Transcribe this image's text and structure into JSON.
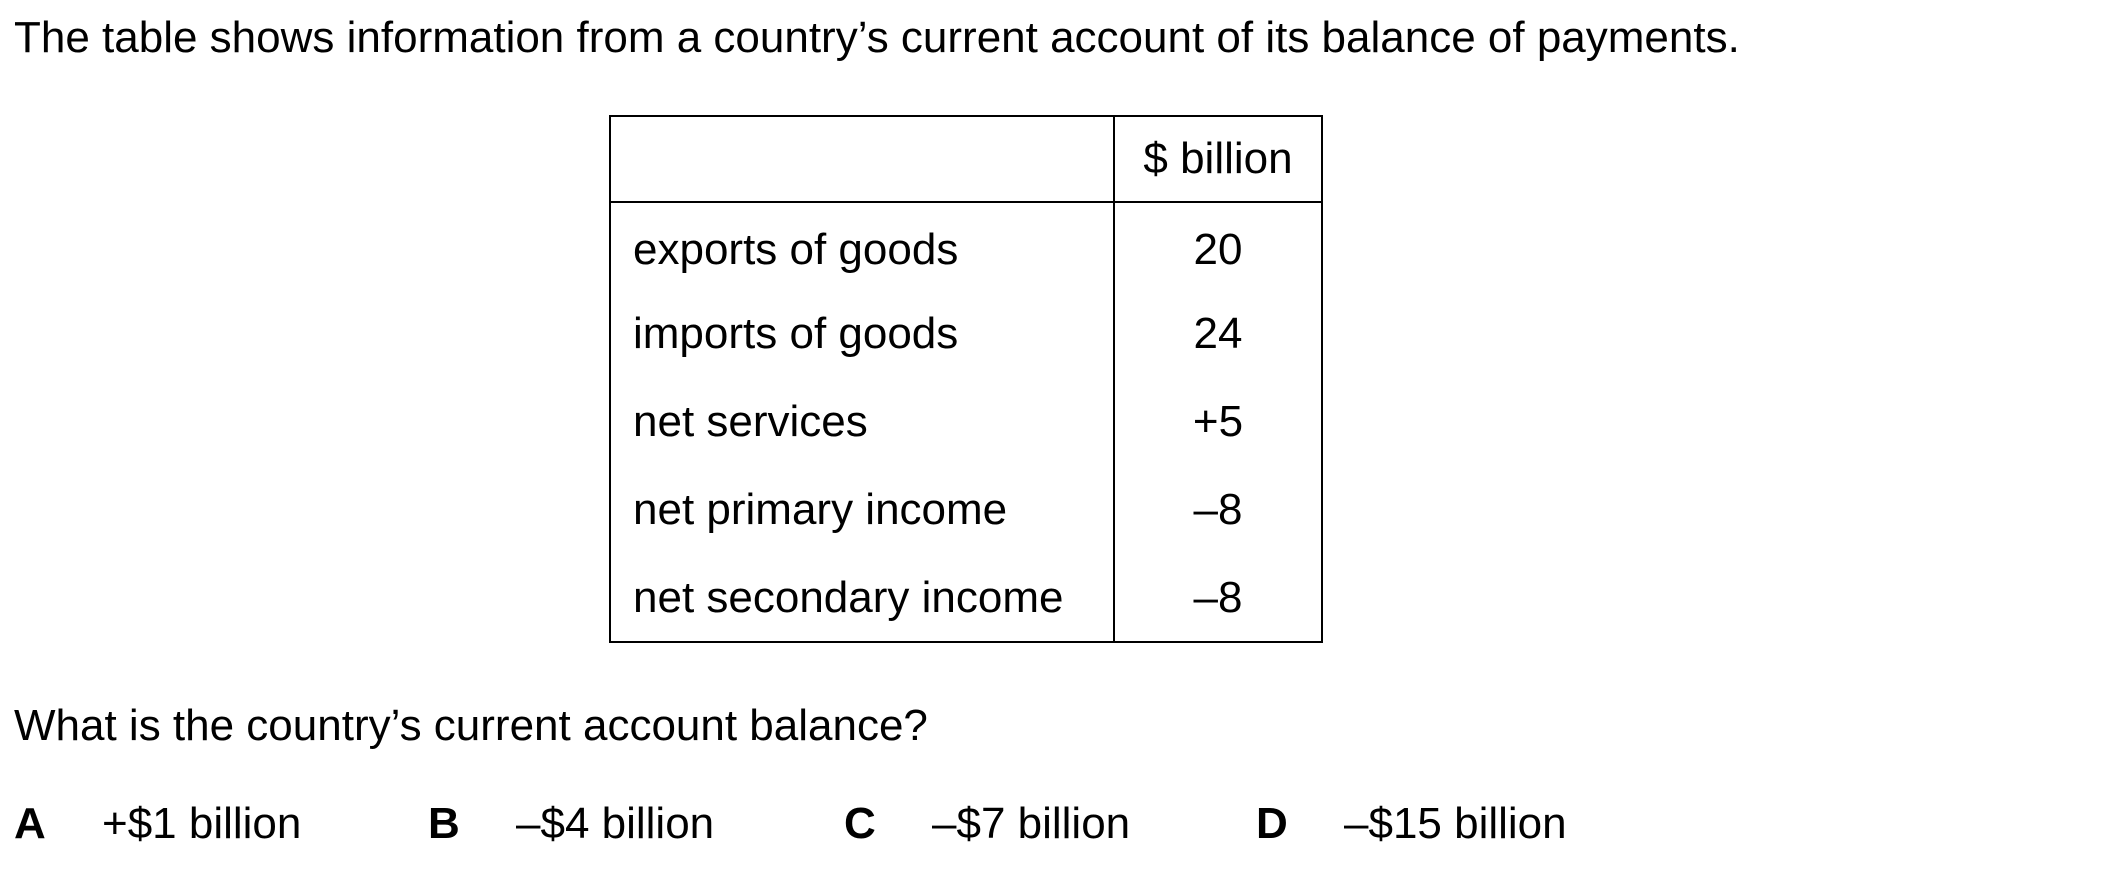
{
  "intro": "The table shows information from a country’s current account of its balance of payments.",
  "table": {
    "columns": [
      "",
      "$ billion"
    ],
    "rows": [
      {
        "item": "exports of goods",
        "value": "20"
      },
      {
        "item": "imports of goods",
        "value": "24"
      },
      {
        "item": "net services",
        "value": "+5"
      },
      {
        "item": "net primary income",
        "value": "–8"
      },
      {
        "item": "net secondary income",
        "value": "–8"
      }
    ]
  },
  "question": "What is the country’s current account balance?",
  "options": [
    {
      "letter": "A",
      "text": "+$1 billion"
    },
    {
      "letter": "B",
      "text": "–$4 billion"
    },
    {
      "letter": "C",
      "text": "–$7 billion"
    },
    {
      "letter": "D",
      "text": "–$15 billion"
    }
  ]
}
